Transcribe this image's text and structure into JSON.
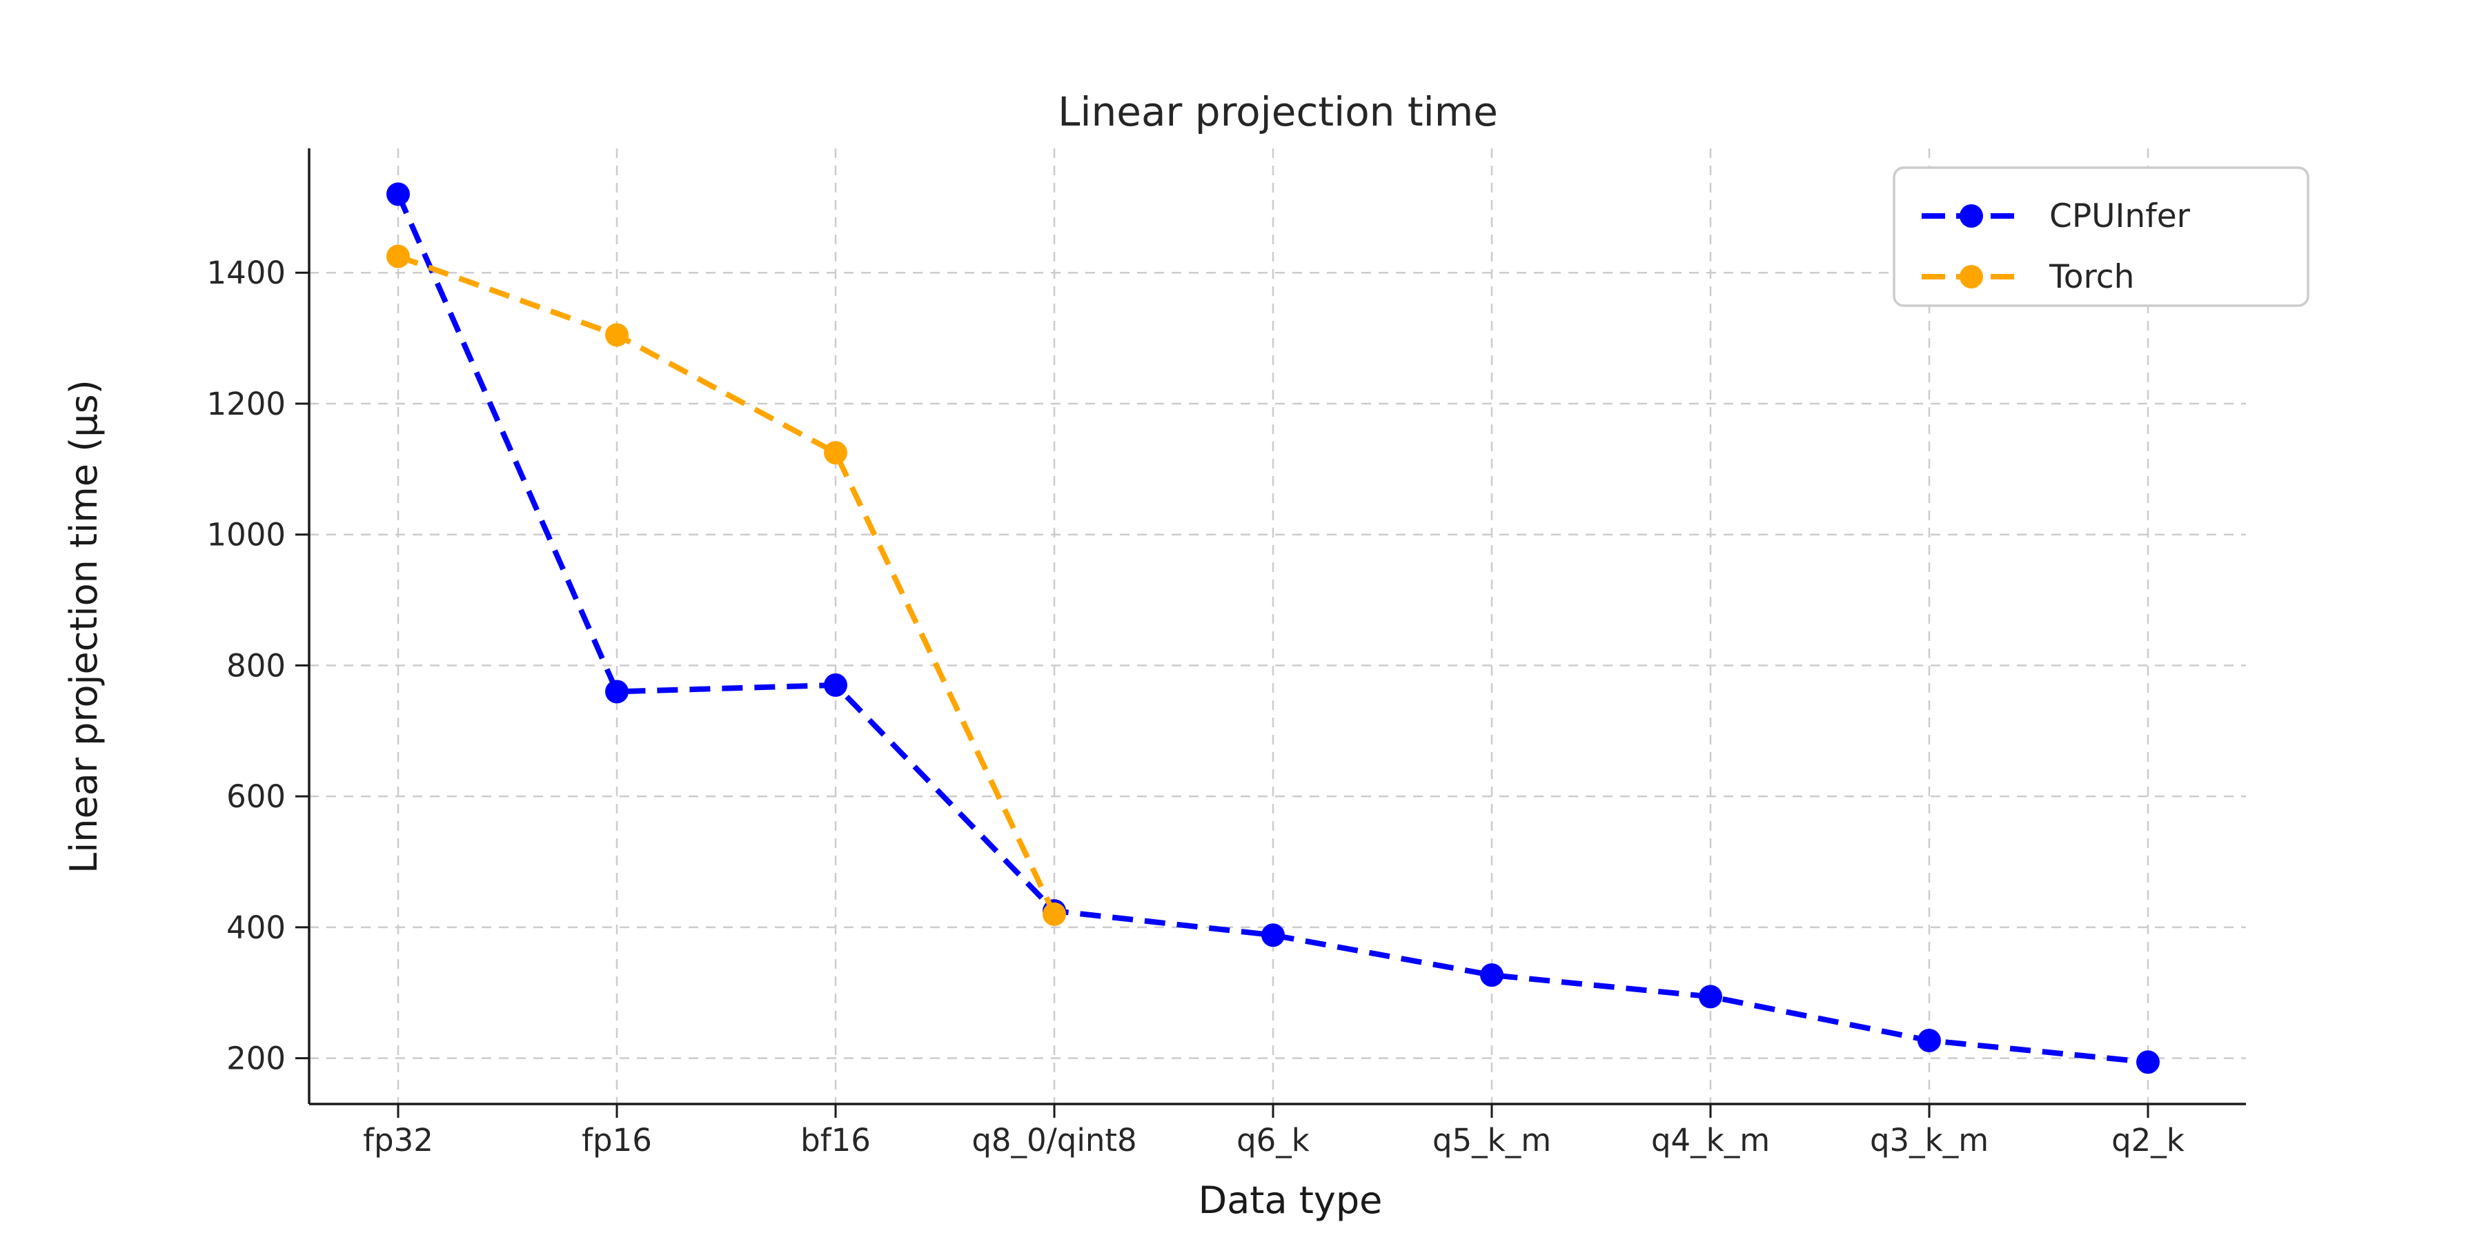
{
  "page": {
    "background": "#ffffff"
  },
  "chart_data": {
    "type": "line",
    "title": "Linear projection time",
    "xlabel": "Data type",
    "ylabel": "Linear projection time (µs)",
    "categories": [
      "fp32",
      "fp16",
      "bf16",
      "q8_0/qint8",
      "q6_k",
      "q5_k_m",
      "q4_k_m",
      "q3_k_m",
      "q2_k"
    ],
    "series": [
      {
        "name": "CPUInfer",
        "color": "#0000ff",
        "line_style": "dashed",
        "marker": "circle",
        "values": [
          1520,
          760,
          770,
          425,
          388,
          327,
          294,
          227,
          194
        ]
      },
      {
        "name": "Torch",
        "color": "#ffa500",
        "line_style": "dashed",
        "marker": "circle",
        "values": [
          1425,
          1305,
          1125,
          420,
          null,
          null,
          null,
          null,
          null
        ]
      }
    ],
    "y_ticks": [
      200,
      400,
      600,
      800,
      1000,
      1200,
      1400
    ],
    "ylim": [
      130,
      1590
    ],
    "grid": true,
    "grid_color": "#cccccc",
    "axis_color": "#1a1a1a",
    "legend_position": "upper right",
    "legend_labels": [
      "CPUInfer",
      "Torch"
    ]
  }
}
